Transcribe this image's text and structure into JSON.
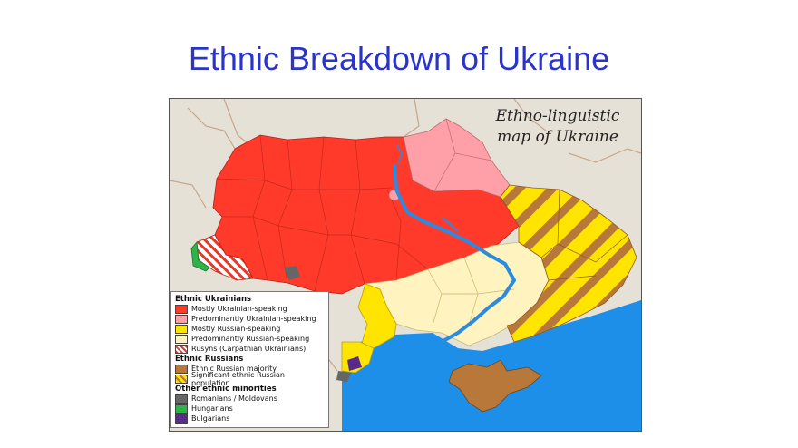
{
  "slide": {
    "title": "Ethnic Breakdown of Ukraine"
  },
  "map": {
    "caption_line1": "Ethno-linguistic",
    "caption_line2": "map of Ukraine",
    "colors": {
      "mostly_ukrainian": "#ff3a2a",
      "predominantly_ukrainian": "#ffa0a8",
      "mostly_russian": "#ffe400",
      "predominantly_russian": "#fff3bf",
      "ethnic_russian_majority": "#b8783a",
      "romanians": "#666666",
      "hungarians": "#2db34a",
      "bulgarians": "#5a2a8a",
      "sea": "#1e8fe8",
      "neighbors": "#e6e1d6"
    }
  },
  "legend": {
    "group1_title": "Ethnic Ukrainians",
    "item_mostly_ukrainian": "Mostly Ukrainian-speaking",
    "item_predominantly_ukrainian": "Predominantly Ukrainian-speaking",
    "item_mostly_russian": "Mostly Russian-speaking",
    "item_predominantly_russian": "Predominantly Russian-speaking",
    "item_rusyns": "Rusyns (Carpathian Ukrainians)",
    "group2_title": "Ethnic Russians",
    "item_russian_majority": "Ethnic Russian majority",
    "item_significant_russian": "Significant ethnic Russian population",
    "group3_title": "Other ethnic minorities",
    "item_romanians": "Romanians / Moldovans",
    "item_hungarians": "Hungarians",
    "item_bulgarians": "Bulgarians"
  }
}
